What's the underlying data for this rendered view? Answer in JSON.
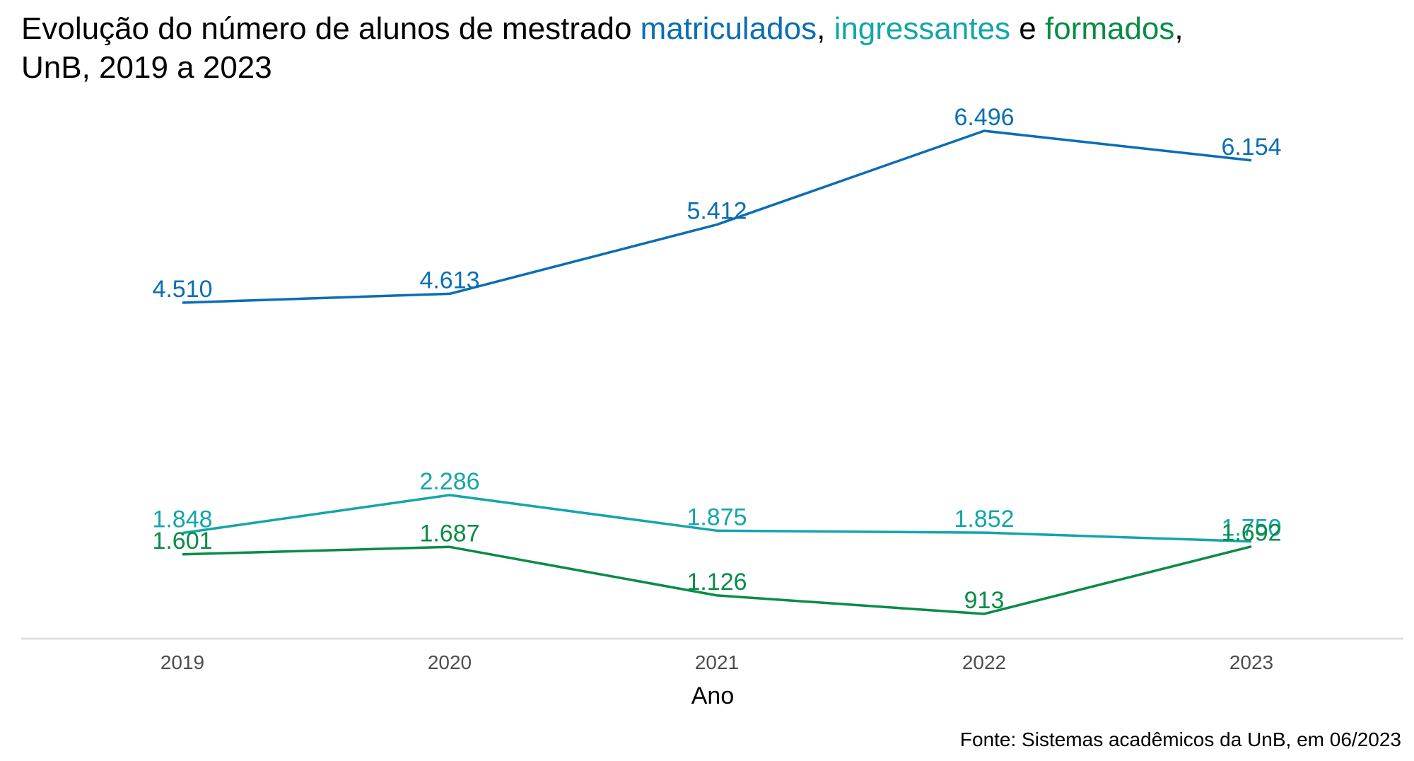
{
  "chart_data": {
    "type": "line",
    "title": {
      "part1": "Evolução do número de alunos de mestrado ",
      "matriculados": "matriculados",
      "sep1": ", ",
      "ingressantes": "ingressantes",
      "sep2": " e ",
      "formados": "formados",
      "sep3": ",",
      "line2": "UnB, 2019 a 2023"
    },
    "xlabel": "Ano",
    "ylabel": "",
    "caption": "Fonte: Sistemas acadêmicos da UnB, em 06/2023",
    "x": [
      2019,
      2020,
      2021,
      2022,
      2023
    ],
    "x_tick_labels": [
      "2019",
      "2020",
      "2021",
      "2022",
      "2023"
    ],
    "ylim": [
      500,
      7000
    ],
    "grid": false,
    "legend": "in title",
    "series": [
      {
        "name": "matriculados",
        "color": "#0A6EB4",
        "values": [
          4510,
          4613,
          5412,
          6496,
          6154
        ],
        "labels": [
          "4.510",
          "4.613",
          "5.412",
          "6.496",
          "6.154"
        ]
      },
      {
        "name": "ingressantes",
        "color": "#14A5AA",
        "values": [
          1848,
          2286,
          1875,
          1852,
          1750
        ],
        "labels": [
          "1.848",
          "2.286",
          "1.875",
          "1.852",
          "1.750"
        ]
      },
      {
        "name": "formados",
        "color": "#0A8C46",
        "values": [
          1601,
          1687,
          1126,
          913,
          1692
        ],
        "labels": [
          "1.601",
          "1.687",
          "1.126",
          "913",
          "1.692"
        ]
      }
    ]
  }
}
